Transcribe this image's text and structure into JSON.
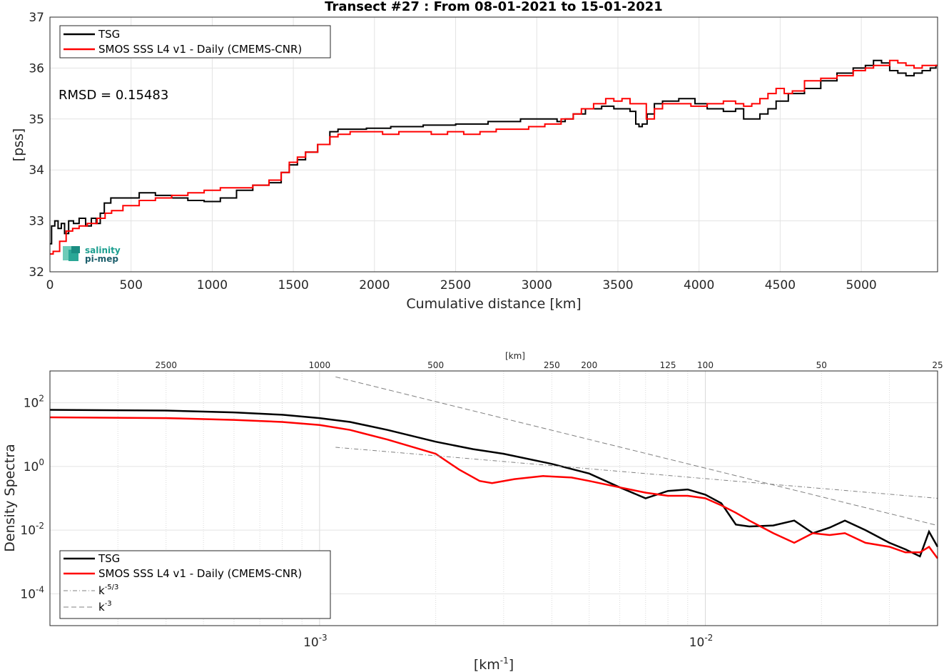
{
  "chart_data": [
    {
      "type": "line",
      "title": "Transect #27 : From 08-01-2021 to 15-01-2021",
      "xlabel": "Cumulative distance [km]",
      "ylabel": "[pss]",
      "xlim": [
        0,
        5470
      ],
      "ylim": [
        32,
        37
      ],
      "xticks": [
        0,
        500,
        1000,
        1500,
        2000,
        2500,
        3000,
        3500,
        4000,
        4500,
        5000
      ],
      "yticks": [
        32,
        33,
        34,
        35,
        36,
        37
      ],
      "grid": true,
      "legend_position": "top-left",
      "annotation": "RMSD = 0.15483",
      "logo_text": [
        "salinity",
        "pi-mep"
      ],
      "series": [
        {
          "name": "TSG",
          "color": "#000000",
          "x": [
            0,
            20,
            40,
            60,
            80,
            100,
            130,
            160,
            200,
            240,
            270,
            300,
            320,
            350,
            400,
            500,
            600,
            700,
            800,
            900,
            1000,
            1100,
            1200,
            1300,
            1400,
            1450,
            1500,
            1550,
            1600,
            1700,
            1750,
            1800,
            1900,
            2000,
            2200,
            2400,
            2600,
            2800,
            3000,
            3050,
            3100,
            3150,
            3200,
            3250,
            3350,
            3450,
            3500,
            3550,
            3600,
            3620,
            3640,
            3660,
            3700,
            3750,
            3800,
            3850,
            3900,
            3950,
            4000,
            4100,
            4200,
            4250,
            4300,
            4350,
            4400,
            4450,
            4500,
            4600,
            4700,
            4800,
            4900,
            5000,
            5050,
            5100,
            5150,
            5200,
            5250,
            5300,
            5350,
            5400,
            5450,
            5470
          ],
          "y": [
            32.55,
            32.9,
            33.0,
            32.85,
            32.95,
            32.75,
            33.0,
            32.95,
            33.05,
            32.9,
            33.05,
            32.95,
            33.15,
            33.35,
            33.45,
            33.45,
            33.55,
            33.5,
            33.45,
            33.4,
            33.38,
            33.45,
            33.6,
            33.7,
            33.75,
            33.95,
            34.1,
            34.2,
            34.35,
            34.5,
            34.75,
            34.8,
            34.8,
            34.82,
            34.85,
            34.88,
            34.9,
            34.95,
            35.0,
            35.0,
            35.0,
            34.95,
            35.0,
            35.1,
            35.2,
            35.25,
            35.2,
            35.2,
            35.15,
            34.9,
            34.85,
            34.9,
            35.1,
            35.3,
            35.35,
            35.35,
            35.4,
            35.4,
            35.3,
            35.2,
            35.15,
            35.2,
            35.0,
            35.0,
            35.1,
            35.2,
            35.35,
            35.5,
            35.6,
            35.75,
            35.9,
            36.0,
            36.05,
            36.15,
            36.1,
            35.95,
            35.9,
            35.85,
            35.9,
            35.95,
            36.0,
            36.05
          ]
        },
        {
          "name": "SMOS SSS L4 v1 - Daily (CMEMS-CNR)",
          "color": "#ff0000",
          "x": [
            0,
            40,
            80,
            120,
            160,
            200,
            260,
            320,
            360,
            400,
            500,
            600,
            700,
            800,
            900,
            1000,
            1100,
            1200,
            1300,
            1400,
            1450,
            1500,
            1550,
            1600,
            1700,
            1750,
            1800,
            1900,
            2000,
            2100,
            2200,
            2300,
            2400,
            2500,
            2600,
            2700,
            2800,
            2900,
            3000,
            3100,
            3200,
            3250,
            3300,
            3400,
            3450,
            3500,
            3550,
            3600,
            3650,
            3700,
            3750,
            3800,
            3900,
            4000,
            4100,
            4200,
            4250,
            4300,
            4350,
            4400,
            4450,
            4500,
            4550,
            4600,
            4700,
            4800,
            4900,
            5000,
            5050,
            5100,
            5150,
            5200,
            5250,
            5300,
            5350,
            5400,
            5450,
            5470
          ],
          "y": [
            32.35,
            32.4,
            32.6,
            32.8,
            32.85,
            32.9,
            32.95,
            33.05,
            33.15,
            33.2,
            33.3,
            33.4,
            33.45,
            33.5,
            33.55,
            33.6,
            33.65,
            33.65,
            33.7,
            33.8,
            33.95,
            34.15,
            34.25,
            34.35,
            34.5,
            34.65,
            34.7,
            34.75,
            34.75,
            34.7,
            34.75,
            34.75,
            34.7,
            34.75,
            34.7,
            34.75,
            34.8,
            34.8,
            34.85,
            34.9,
            35.0,
            35.1,
            35.2,
            35.3,
            35.4,
            35.35,
            35.4,
            35.3,
            35.3,
            35.0,
            35.2,
            35.3,
            35.3,
            35.25,
            35.3,
            35.35,
            35.3,
            35.25,
            35.3,
            35.4,
            35.5,
            35.6,
            35.5,
            35.55,
            35.75,
            35.8,
            35.85,
            35.95,
            36.0,
            36.05,
            36.05,
            36.15,
            36.1,
            36.05,
            36.0,
            36.05,
            36.05,
            36.05
          ]
        }
      ]
    },
    {
      "type": "line",
      "title": "",
      "xlabel": "[km-1]",
      "ylabel": "Density Spectra",
      "top_axis_label": "[km]",
      "top_ticks": [
        "2500",
        "1000",
        "500",
        "250",
        "200",
        "125",
        "100",
        "50",
        "25"
      ],
      "xscale": "log",
      "yscale": "log",
      "xlim": [
        0.0002,
        0.04
      ],
      "ylim": [
        1e-05,
        1000
      ],
      "xtick_labels": [
        "10-3",
        "10-2"
      ],
      "ytick_labels": [
        "10-4",
        "10-2",
        "100",
        "102"
      ],
      "grid": true,
      "legend_position": "bottom-left",
      "series": [
        {
          "name": "TSG",
          "color": "#000000",
          "x": [
            0.0002,
            0.0004,
            0.0006,
            0.0008,
            0.001,
            0.0012,
            0.0015,
            0.002,
            0.0025,
            0.003,
            0.004,
            0.005,
            0.006,
            0.007,
            0.008,
            0.009,
            0.01,
            0.011,
            0.012,
            0.013,
            0.015,
            0.017,
            0.019,
            0.021,
            0.023,
            0.026,
            0.03,
            0.033,
            0.036,
            0.038,
            0.04
          ],
          "y": [
            60,
            57,
            50,
            42,
            33,
            25,
            14,
            6,
            3.5,
            2.5,
            1.2,
            0.6,
            0.22,
            0.1,
            0.17,
            0.19,
            0.13,
            0.07,
            0.015,
            0.013,
            0.014,
            0.02,
            0.008,
            0.012,
            0.02,
            0.01,
            0.004,
            0.0025,
            0.0015,
            0.009,
            0.003
          ]
        },
        {
          "name": "SMOS SSS L4 v1 - Daily (CMEMS-CNR)",
          "color": "#ff0000",
          "x": [
            0.0002,
            0.0004,
            0.0006,
            0.0008,
            0.001,
            0.0012,
            0.0015,
            0.002,
            0.0023,
            0.0026,
            0.0028,
            0.0032,
            0.0038,
            0.0045,
            0.005,
            0.006,
            0.007,
            0.008,
            0.009,
            0.01,
            0.011,
            0.012,
            0.013,
            0.015,
            0.017,
            0.019,
            0.021,
            0.023,
            0.026,
            0.03,
            0.033,
            0.036,
            0.038,
            0.04
          ],
          "y": [
            35,
            33,
            29,
            25,
            20,
            14,
            7,
            2.5,
            0.8,
            0.35,
            0.3,
            0.4,
            0.5,
            0.45,
            0.35,
            0.22,
            0.15,
            0.12,
            0.12,
            0.1,
            0.06,
            0.035,
            0.02,
            0.008,
            0.004,
            0.008,
            0.007,
            0.008,
            0.004,
            0.003,
            0.002,
            0.002,
            0.003,
            0.0013
          ]
        },
        {
          "name": "k-5/3",
          "color": "#808080",
          "dash": "dashdot",
          "x": [
            0.0011,
            0.04
          ],
          "y": [
            4,
            0.1
          ]
        },
        {
          "name": "k-3",
          "color": "#808080",
          "dash": "dash",
          "x": [
            0.0011,
            0.04
          ],
          "y": [
            650,
            0.014
          ]
        }
      ]
    }
  ]
}
